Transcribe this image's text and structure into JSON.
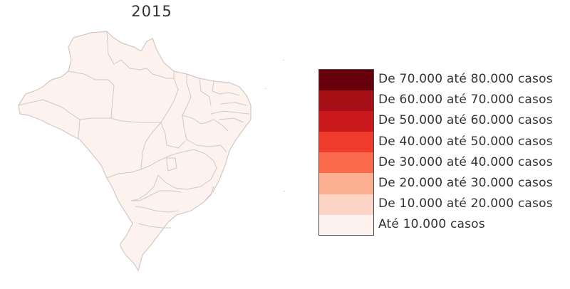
{
  "map": {
    "title": "2015",
    "region_fill": "#fef2ef",
    "region_stroke": "#d2c8c6",
    "highlighted_class": "Até 10.000 casos"
  },
  "legend": {
    "items": [
      {
        "label": "De 70.000 até 80.000 casos",
        "color": "#67000d"
      },
      {
        "label": "De 60.000 até 70.000 casos",
        "color": "#a50f15"
      },
      {
        "label": "De 50.000 até 60.000 casos",
        "color": "#cb181d"
      },
      {
        "label": "De 40.000 até 50.000 casos",
        "color": "#ef3b2c"
      },
      {
        "label": "De 30.000 até 40.000 casos",
        "color": "#fb6a4a"
      },
      {
        "label": "De 20.000 até 30.000 casos",
        "color": "#fcae91"
      },
      {
        "label": "De 10.000 até 20.000 casos",
        "color": "#fdd5c6"
      },
      {
        "label": "Até 10.000 casos",
        "color": "#fef2ef"
      }
    ]
  }
}
